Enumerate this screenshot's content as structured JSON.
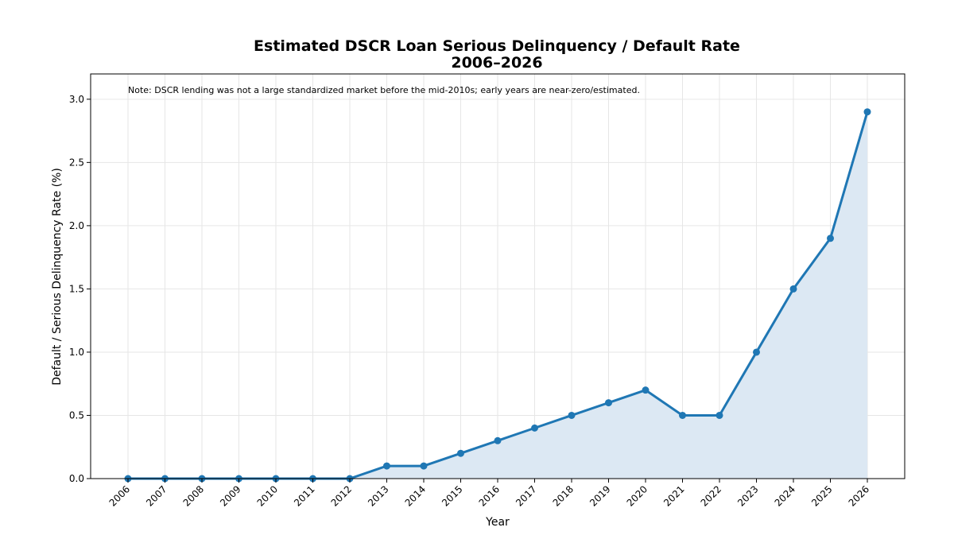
{
  "chart_data": {
    "type": "line",
    "title_line1": "Estimated DSCR Loan Serious Delinquency / Default Rate",
    "title_line2": "2006–2026",
    "xlabel": "Year",
    "ylabel": "Default / Serious Delinquency Rate (%)",
    "note": "Note: DSCR lending was not a large standardized market before the mid-2010s; early years are near-zero/estimated.",
    "x": [
      "2006",
      "2007",
      "2008",
      "2009",
      "2010",
      "2011",
      "2012",
      "2013",
      "2014",
      "2015",
      "2016",
      "2017",
      "2018",
      "2019",
      "2020",
      "2021",
      "2022",
      "2023",
      "2024",
      "2025",
      "2026"
    ],
    "series": [
      {
        "values": [
          0,
          0,
          0,
          0,
          0,
          0,
          0,
          0.1,
          0.1,
          0.2,
          0.3,
          0.4,
          0.5,
          0.6,
          0.7,
          0.5,
          0.5,
          1.0,
          1.5,
          1.9,
          2.9
        ]
      }
    ],
    "yticks": [
      "0.0",
      "0.5",
      "1.0",
      "1.5",
      "2.0",
      "2.5",
      "3.0"
    ],
    "ylim": [
      0,
      3.2
    ],
    "grid": true,
    "fill_under_line": true,
    "colors": {
      "line": "#1f77b4",
      "fill": "#dce8f3",
      "grid": "#e6e6e6",
      "axis": "#000000"
    }
  }
}
